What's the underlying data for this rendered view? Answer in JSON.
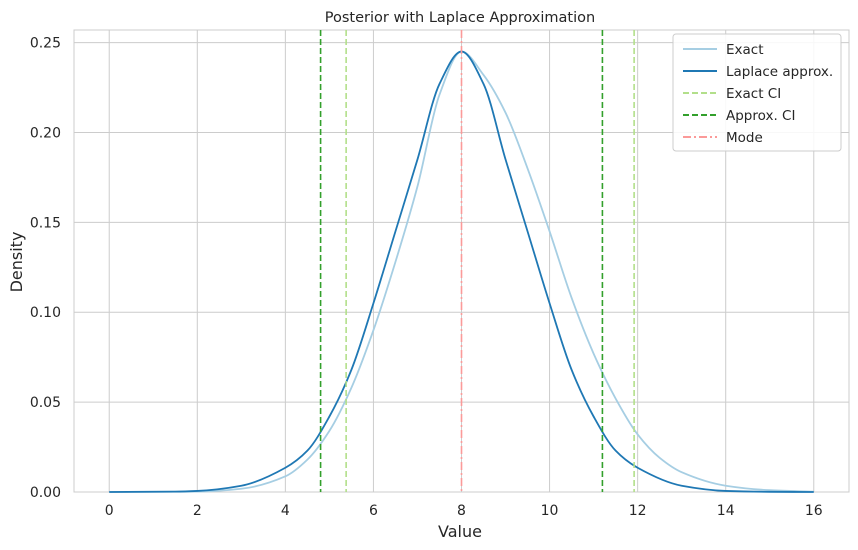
{
  "chart_data": {
    "type": "line",
    "title": "Posterior with Laplace Approximation",
    "xlabel": "Value",
    "ylabel": "Density",
    "xlim": [
      -0.8,
      16.8
    ],
    "ylim": [
      0,
      0.257
    ],
    "xticks": [
      0,
      2,
      4,
      6,
      8,
      10,
      12,
      14,
      16
    ],
    "yticks": [
      0.0,
      0.05,
      0.1,
      0.15,
      0.2,
      0.25
    ],
    "ytick_labels": [
      "0.00",
      "0.05",
      "0.10",
      "0.15",
      "0.20",
      "0.25"
    ],
    "grid": true,
    "legend_position": "top-right",
    "series": [
      {
        "name": "Exact",
        "style": "solid",
        "color": "#a6cee3",
        "x": [
          0,
          2,
          3,
          4,
          4.5,
          5,
          5.5,
          6,
          6.5,
          7,
          7.5,
          8,
          8.5,
          9,
          9.5,
          10,
          10.5,
          11,
          11.5,
          12,
          12.5,
          13,
          14,
          15,
          16
        ],
        "y": [
          0,
          0.0002,
          0.0018,
          0.0087,
          0.018,
          0.034,
          0.058,
          0.09,
          0.128,
          0.17,
          0.221,
          0.245,
          0.232,
          0.211,
          0.18,
          0.145,
          0.108,
          0.077,
          0.052,
          0.032,
          0.019,
          0.011,
          0.0035,
          0.001,
          0.0002
        ]
      },
      {
        "name": "Laplace approx.",
        "style": "solid",
        "color": "#1f78b4",
        "x": [
          0,
          1.5,
          2,
          3,
          4,
          4.5,
          5,
          5.5,
          6,
          6.5,
          7,
          7.5,
          8,
          8.5,
          9,
          9.5,
          10,
          10.5,
          11,
          11.5,
          12,
          13,
          14,
          15,
          16
        ],
        "y": [
          0,
          0.0002,
          0.0006,
          0.0035,
          0.0135,
          0.023,
          0.042,
          0.068,
          0.105,
          0.145,
          0.185,
          0.227,
          0.245,
          0.227,
          0.185,
          0.145,
          0.105,
          0.068,
          0.042,
          0.023,
          0.0135,
          0.0035,
          0.0006,
          0.0001,
          0
        ]
      }
    ],
    "vlines": [
      {
        "name": "Exact CI",
        "x": [
          5.38,
          11.92
        ],
        "style": "dashed",
        "color": "#b2df8a"
      },
      {
        "name": "Approx. CI",
        "x": [
          4.8,
          11.2
        ],
        "style": "dashed",
        "color": "#33a02c"
      },
      {
        "name": "Mode",
        "x": [
          8.0
        ],
        "style": "dashdot",
        "color": "#fb9a99"
      }
    ]
  }
}
